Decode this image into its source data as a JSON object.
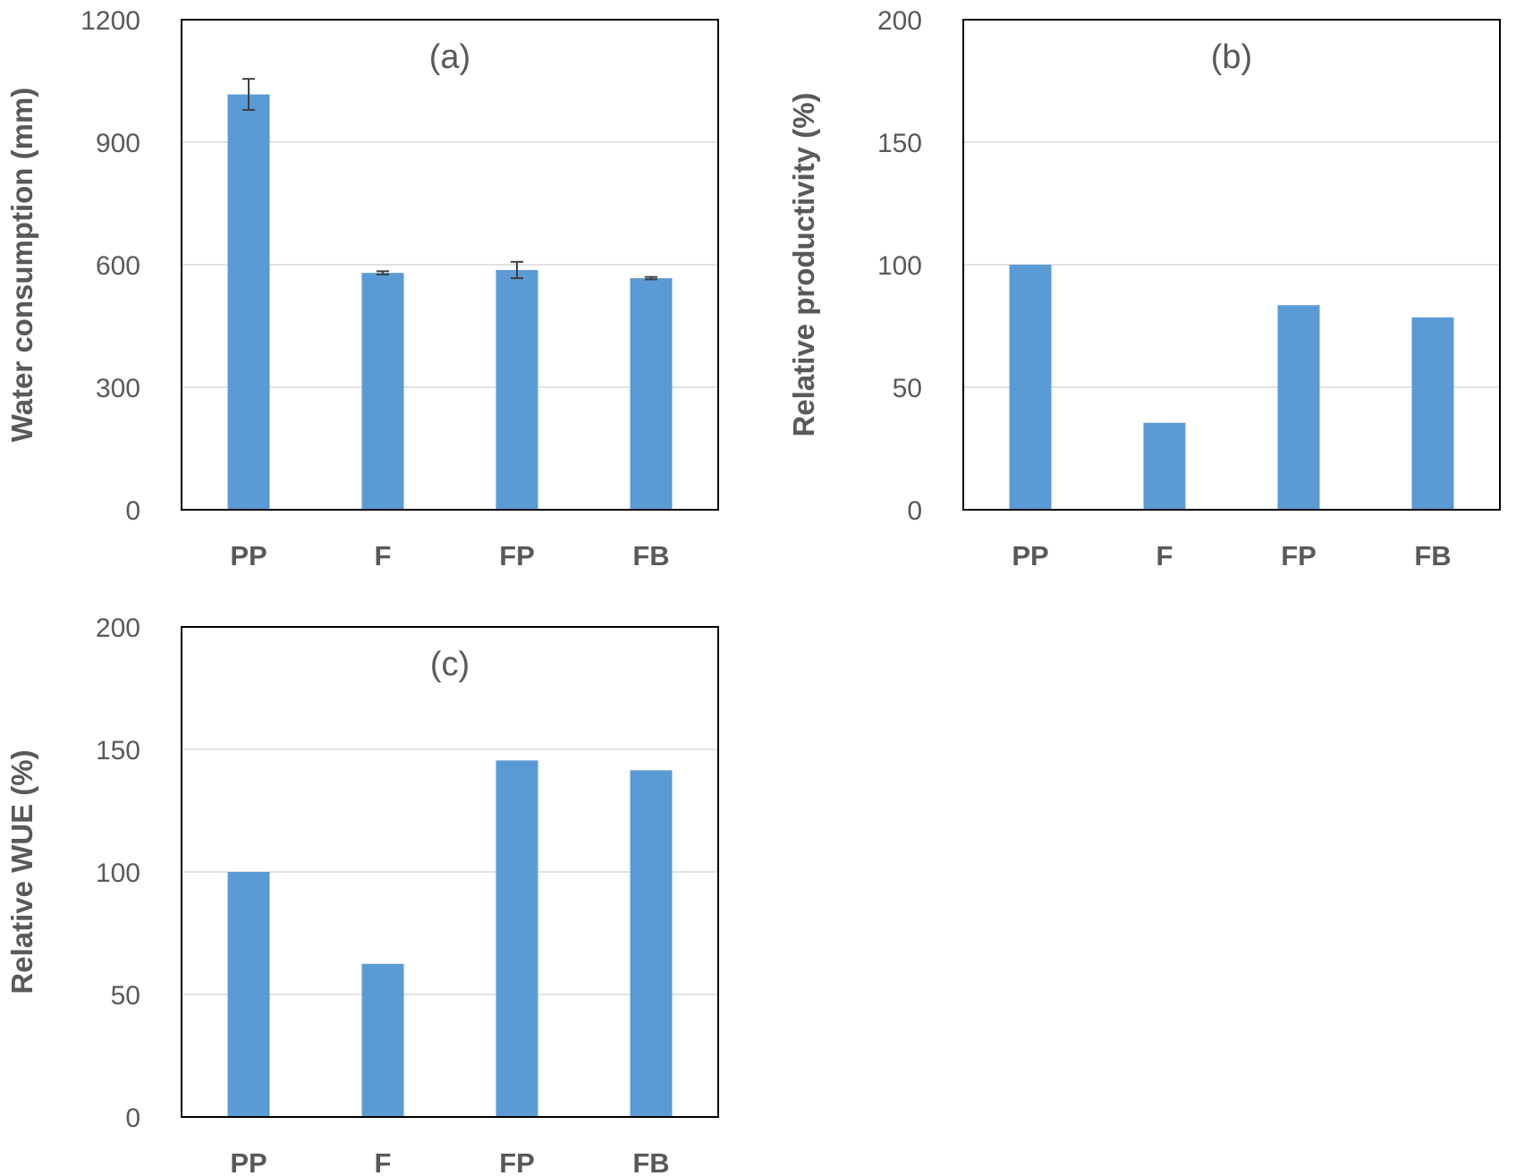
{
  "colors": {
    "bar": "#5b9bd5",
    "gridline": "#d9d9d9",
    "frame": "#000000",
    "text": "#595959",
    "error_bar": "#404040"
  },
  "chart_data": [
    {
      "type": "bar",
      "title": "(a)",
      "xlabel": "",
      "ylabel": "Water consumption (mm)",
      "categories": [
        "PP",
        "F",
        "FP",
        "FB"
      ],
      "values": [
        1017,
        580,
        587,
        567
      ],
      "error": [
        38,
        4,
        20,
        3
      ],
      "ylim": [
        0,
        1200
      ],
      "yticks": [
        0,
        300,
        600,
        900,
        1200
      ],
      "grid": true,
      "legend": "none"
    },
    {
      "type": "bar",
      "title": "(b)",
      "xlabel": "",
      "ylabel": "Relative productivity (%)",
      "categories": [
        "PP",
        "F",
        "FP",
        "FB"
      ],
      "values": [
        100,
        35.5,
        83.5,
        78.5
      ],
      "ylim": [
        0,
        200
      ],
      "yticks": [
        0,
        50,
        100,
        150,
        200
      ],
      "grid": true,
      "legend": "none"
    },
    {
      "type": "bar",
      "title": "(c)",
      "xlabel": "",
      "ylabel": "Relative WUE (%)",
      "categories": [
        "PP",
        "F",
        "FP",
        "FB"
      ],
      "values": [
        100,
        62.5,
        145.5,
        141.5
      ],
      "ylim": [
        0,
        200
      ],
      "yticks": [
        0,
        50,
        100,
        150,
        200
      ],
      "grid": true,
      "legend": "none"
    }
  ]
}
